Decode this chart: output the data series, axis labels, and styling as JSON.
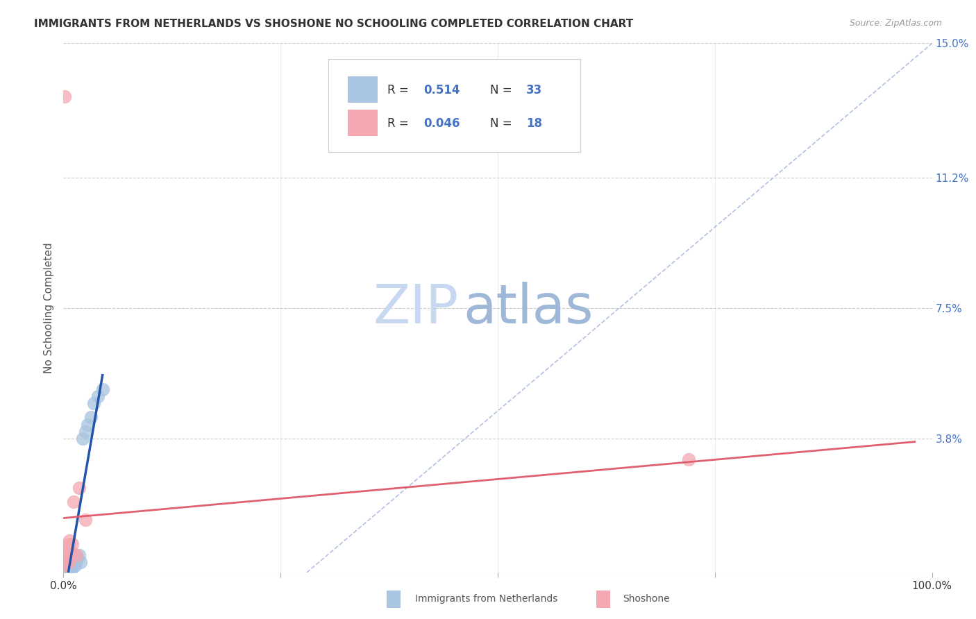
{
  "title": "IMMIGRANTS FROM NETHERLANDS VS SHOSHONE NO SCHOOLING COMPLETED CORRELATION CHART",
  "source": "Source: ZipAtlas.com",
  "ylabel": "No Schooling Completed",
  "xlim": [
    0,
    1.0
  ],
  "ylim": [
    0,
    0.15
  ],
  "xticks": [
    0.0,
    0.25,
    0.5,
    0.75,
    1.0
  ],
  "xticklabels": [
    "0.0%",
    "",
    "",
    "",
    "100.0%"
  ],
  "ytick_positions": [
    0.0,
    0.038,
    0.075,
    0.112,
    0.15
  ],
  "yticklabels": [
    "",
    "3.8%",
    "7.5%",
    "11.2%",
    "15.0%"
  ],
  "netherlands_R": 0.514,
  "netherlands_N": 33,
  "shoshone_R": 0.046,
  "shoshone_N": 18,
  "netherlands_color": "#a8c4e0",
  "shoshone_color": "#f4a7b0",
  "netherlands_line_color": "#2255aa",
  "shoshone_line_color": "#e06070",
  "legend_label_netherlands": "Immigrants from Netherlands",
  "legend_label_shoshone": "Shoshone",
  "background_color": "#ffffff",
  "grid_color": "#cccccc",
  "watermark_zip": "ZIP",
  "watermark_atlas": "atlas",
  "watermark_color_zip": "#c8d8f0",
  "watermark_color_atlas": "#a0b8d8",
  "diag_line_color": "#aabbdd",
  "nl_x": [
    0.001,
    0.002,
    0.002,
    0.003,
    0.003,
    0.004,
    0.004,
    0.005,
    0.005,
    0.006,
    0.006,
    0.007,
    0.007,
    0.008,
    0.008,
    0.009,
    0.009,
    0.01,
    0.011,
    0.012,
    0.013,
    0.014,
    0.015,
    0.016,
    0.018,
    0.02,
    0.022,
    0.025,
    0.028,
    0.032,
    0.035,
    0.04,
    0.045
  ],
  "nl_y": [
    0.0,
    0.0,
    0.001,
    0.0,
    0.002,
    0.001,
    0.003,
    0.001,
    0.002,
    0.0,
    0.003,
    0.002,
    0.001,
    0.003,
    0.002,
    0.001,
    0.004,
    0.002,
    0.003,
    0.004,
    0.002,
    0.005,
    0.003,
    0.004,
    0.005,
    0.003,
    0.038,
    0.04,
    0.042,
    0.044,
    0.048,
    0.05,
    0.052
  ],
  "sh_x": [
    0.001,
    0.001,
    0.002,
    0.003,
    0.003,
    0.004,
    0.005,
    0.006,
    0.006,
    0.007,
    0.008,
    0.009,
    0.01,
    0.012,
    0.015,
    0.018,
    0.025,
    0.72
  ],
  "sh_y": [
    0.002,
    0.135,
    0.004,
    0.003,
    0.006,
    0.007,
    0.005,
    0.008,
    0.003,
    0.009,
    0.005,
    0.006,
    0.008,
    0.02,
    0.005,
    0.024,
    0.015,
    0.032
  ]
}
